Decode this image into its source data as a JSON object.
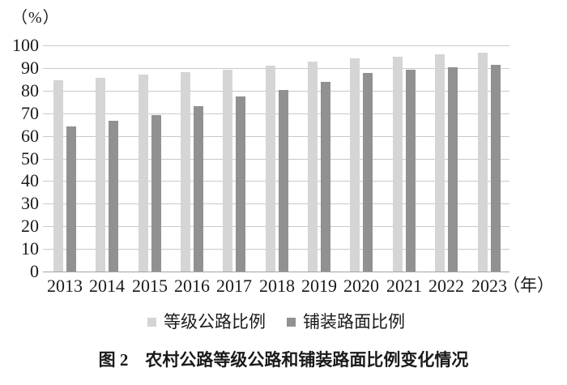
{
  "figure": {
    "caption": "图 2　农村公路等级公路和铺装路面比例变化情况"
  },
  "chart_data": {
    "type": "bar",
    "title": "图 2　农村公路等级公路和铺装路面比例变化情况",
    "categories": [
      "2013",
      "2014",
      "2015",
      "2016",
      "2017",
      "2018",
      "2019",
      "2020",
      "2021",
      "2022",
      "2023"
    ],
    "series": [
      {
        "name": "等级公路比例",
        "color": "#d5d5d5",
        "values": [
          84.7,
          85.8,
          87.0,
          88.3,
          89.3,
          91.0,
          92.7,
          94.3,
          94.9,
          96.0,
          96.7
        ]
      },
      {
        "name": "铺装路面比例",
        "color": "#919191",
        "values": [
          64.3,
          66.5,
          69.0,
          73.2,
          77.5,
          80.4,
          83.7,
          87.8,
          89.3,
          90.5,
          91.5
        ]
      }
    ],
    "ylabel": "（%）",
    "xlabel": "（年）",
    "ylim": [
      0,
      100
    ],
    "yticks": [
      0,
      10,
      20,
      30,
      40,
      50,
      60,
      70,
      80,
      90,
      100
    ],
    "grid": true,
    "legend_position": "bottom",
    "colors": {
      "gridline": "#c9c9c9",
      "axis_line": "#a3a3a3",
      "text": "#1a1a1a"
    }
  }
}
